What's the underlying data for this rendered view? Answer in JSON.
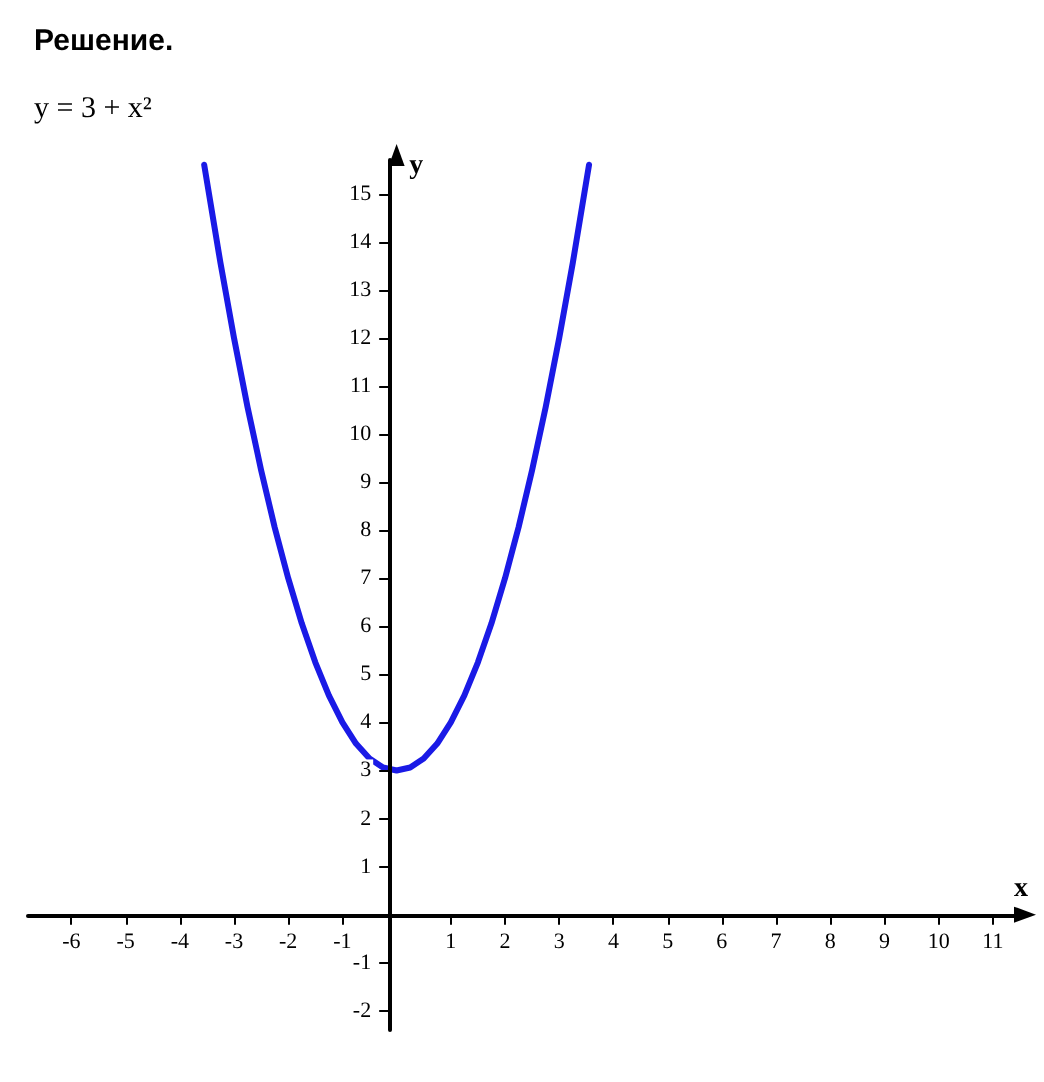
{
  "chart_data": {
    "type": "line",
    "title": "Решение.",
    "subtitle": "y = 3 + x²",
    "xlabel": "x",
    "ylabel": "y",
    "x": [
      -3.55,
      -3.25,
      -3,
      -2.75,
      -2.5,
      -2.25,
      -2,
      -1.75,
      -1.5,
      -1.25,
      -1,
      -0.75,
      -0.5,
      -0.25,
      0,
      0.25,
      0.5,
      0.75,
      1,
      1.25,
      1.5,
      1.75,
      2,
      2.25,
      2.5,
      2.75,
      3,
      3.25,
      3.55
    ],
    "series": [
      {
        "color": "#1a1ae6",
        "values": [
          15.6,
          13.56,
          12,
          10.56,
          9.25,
          8.06,
          7,
          6.06,
          5.25,
          4.56,
          4,
          3.56,
          3.25,
          3.06,
          3,
          3.06,
          3.25,
          3.56,
          4,
          4.56,
          5.25,
          6.06,
          7,
          8.06,
          9.25,
          10.56,
          12,
          13.56,
          15.6
        ]
      }
    ],
    "xlim": [
      -6.8,
      11.5
    ],
    "ylim": [
      -2.4,
      15.7
    ],
    "xticks": [
      -6,
      -5,
      -4,
      -3,
      -2,
      -1,
      1,
      2,
      3,
      4,
      5,
      6,
      7,
      8,
      9,
      10,
      11
    ],
    "yticks": [
      -2,
      -1,
      1,
      2,
      3,
      4,
      5,
      6,
      7,
      8,
      9,
      10,
      11,
      12,
      13,
      14,
      15
    ],
    "grid": false,
    "marker": "none",
    "line_style": "solid"
  }
}
